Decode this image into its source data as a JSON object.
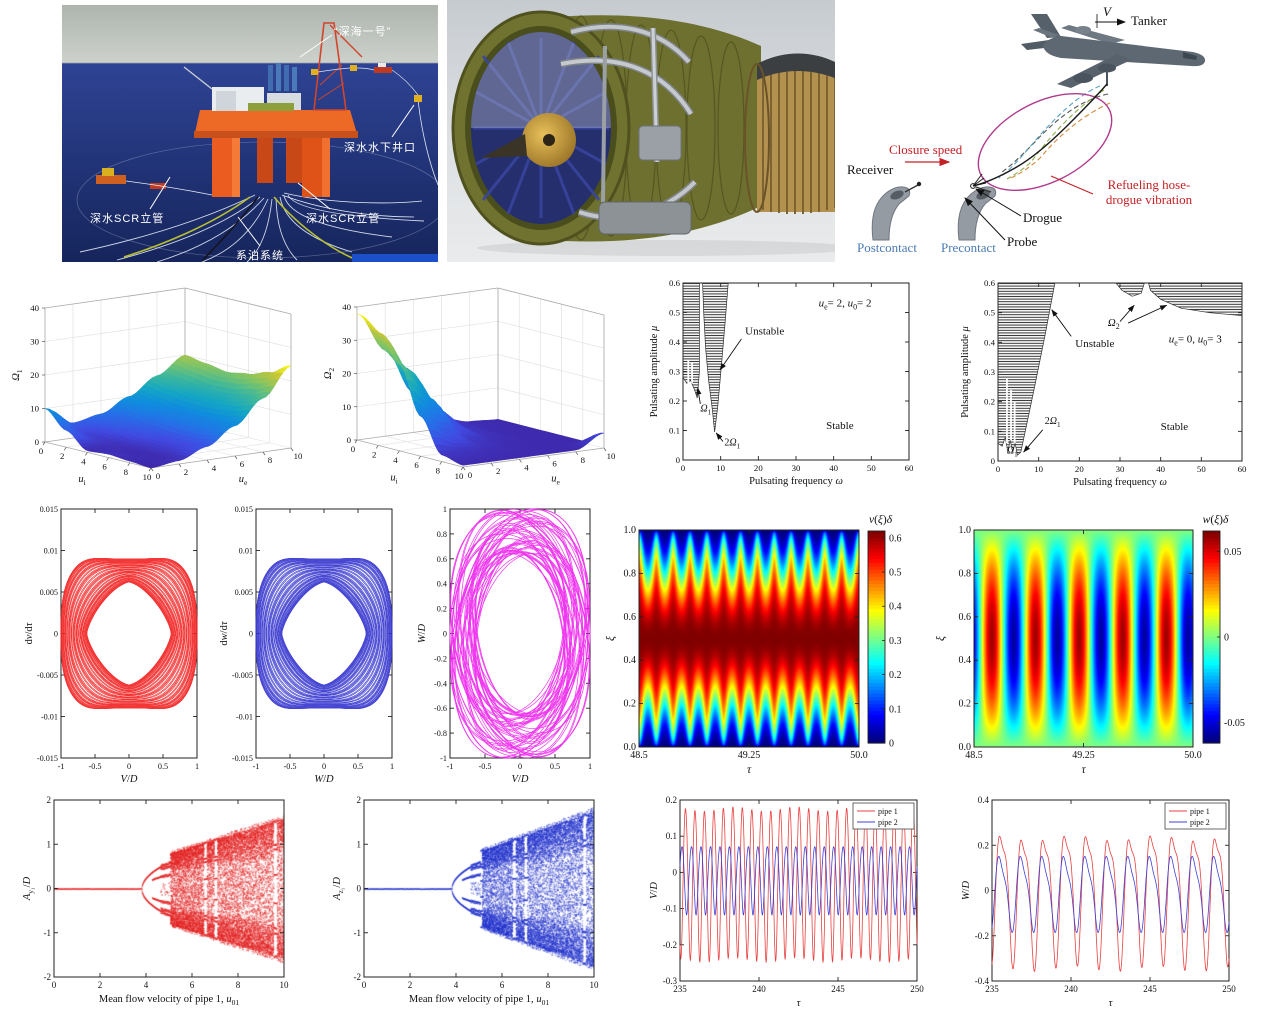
{
  "images": {
    "platform": {
      "labels": {
        "title": "“深海一号”",
        "wellhead": "深水水下井口",
        "riser_left": "深水SCR立管",
        "riser_right": "深水SCR立管",
        "mooring": "系泊系统"
      }
    },
    "engine": {},
    "refueling": {
      "labels": {
        "v": "V",
        "tanker": "Tanker",
        "closure": "Closure speed",
        "receiver": "Receiver",
        "postcontact": "Postcontact",
        "precontact": "Precontact",
        "drogue": "Drogue",
        "probe": "Probe",
        "vibration": "Refueling hose-drogue vibration"
      }
    }
  },
  "chart_data": [
    {
      "type": "surface3d",
      "xlabel": "*u*_{i}",
      "ylabel": "*u*_{e}",
      "zlabel": "*Ω*_{1}",
      "xlim": [
        0,
        10
      ],
      "ylim": [
        0,
        10
      ],
      "zlim": [
        0,
        40
      ],
      "xticks": [
        "0",
        "2",
        "4",
        "6",
        "8",
        "10"
      ],
      "yticks": [
        "0",
        "2",
        "4",
        "6",
        "8",
        "10"
      ],
      "zticks": [
        "0",
        "10",
        "20",
        "30",
        "40"
      ],
      "zmax_data": 24.5,
      "z": [
        [
          10,
          4.5,
          6,
          10,
          15,
          20
        ],
        [
          5,
          2,
          5,
          9,
          14,
          19
        ],
        [
          0.5,
          1,
          4,
          8,
          13,
          18
        ],
        [
          1,
          0.5,
          3,
          8,
          13,
          19
        ],
        [
          0.5,
          0.5,
          3,
          8,
          14,
          21
        ],
        [
          0,
          1,
          4,
          9,
          16,
          24.5
        ]
      ]
    },
    {
      "type": "surface3d",
      "xlabel": "*u*_{i}",
      "ylabel": "*u*_{e}",
      "zlabel": "*Ω*_{2}",
      "xlim": [
        0,
        10
      ],
      "ylim": [
        0,
        10
      ],
      "zlim": [
        0,
        40
      ],
      "xticks": [
        "0",
        "2",
        "4",
        "6",
        "8",
        "10"
      ],
      "yticks": [
        "0",
        "2",
        "4",
        "6",
        "8",
        "10"
      ],
      "zticks": [
        "0",
        "10",
        "20",
        "30",
        "40"
      ],
      "zmax_data": 38,
      "z": [
        [
          38,
          26,
          12,
          3,
          1,
          0.5
        ],
        [
          34,
          22,
          9,
          2,
          0.8,
          0.5
        ],
        [
          26,
          15,
          5,
          1.5,
          0.6,
          0.5
        ],
        [
          12,
          6,
          2,
          1,
          0.5,
          0.5
        ],
        [
          2,
          1.5,
          1,
          0.6,
          0.5,
          0.5
        ],
        [
          0.5,
          0.5,
          0.5,
          0.5,
          0.5,
          4.5
        ]
      ]
    },
    {
      "type": "stability",
      "xlabel": "Pulsating frequency *ω*",
      "ylabel": "Pulsating amplitude *μ*",
      "xlim": [
        0,
        60
      ],
      "ylim": [
        0,
        0.6
      ],
      "xticks": [
        "0",
        "10",
        "20",
        "30",
        "40",
        "50",
        "60"
      ],
      "yticks": [
        "0",
        "0.1",
        "0.2",
        "0.3",
        "0.4",
        "0.5",
        "0.6"
      ],
      "regions": [
        [
          [
            0,
            0.6
          ],
          [
            4.35,
            0.6
          ],
          [
            4.35,
            0.3
          ],
          [
            3.8,
            0.21
          ],
          [
            3.0,
            0.24
          ],
          [
            2.0,
            0.27
          ],
          [
            1.0,
            0.26
          ],
          [
            0,
            0.28
          ]
        ],
        [
          [
            5.2,
            0.6
          ],
          [
            12,
            0.6
          ],
          [
            11.2,
            0.47
          ],
          [
            10.2,
            0.32
          ],
          [
            9.2,
            0.18
          ],
          [
            8.4,
            0.095
          ],
          [
            7.8,
            0.17
          ],
          [
            6.8,
            0.27
          ],
          [
            6.0,
            0.38
          ],
          [
            5.5,
            0.5
          ]
        ]
      ],
      "slits": [
        [
          1.4,
          0.25,
          1.4,
          0.34
        ],
        [
          2.4,
          0.26,
          2.4,
          0.33
        ]
      ],
      "annotations": [
        {
          "t": "*u*_{e}= 2, *u*_{0}= 2",
          "x": 36,
          "y": 0.52,
          "fs": 11
        },
        {
          "t": "Unstable",
          "x": 16.5,
          "y": 0.425,
          "fs": 11,
          "arrows": [
            [
              15.5,
              0.41,
              9.8,
              0.305
            ]
          ]
        },
        {
          "t": "Stable",
          "x": 38,
          "y": 0.105,
          "fs": 11
        },
        {
          "t": "*Ω*_{1}",
          "x": 4.6,
          "y": 0.165,
          "fs": 10,
          "arrows": [
            [
              4.6,
              0.19,
              3.9,
              0.245
            ]
          ]
        },
        {
          "t": "2*Ω*_{1}",
          "x": 11,
          "y": 0.05,
          "fs": 10,
          "arrows": [
            [
              10.6,
              0.063,
              8.8,
              0.092
            ]
          ]
        }
      ]
    },
    {
      "type": "stability",
      "xlabel": "Pulsating frequency *ω*",
      "ylabel": "Pulsating amplitude *μ*",
      "xlim": [
        0,
        60
      ],
      "ylim": [
        0,
        0.6
      ],
      "xticks": [
        "0",
        "10",
        "20",
        "30",
        "40",
        "50",
        "60"
      ],
      "yticks": [
        "0",
        "0.1",
        "0.2",
        "0.3",
        "0.4",
        "0.5",
        "0.6"
      ],
      "regions": [
        [
          [
            0,
            0.6
          ],
          [
            14,
            0.6
          ],
          [
            11.5,
            0.42
          ],
          [
            9,
            0.25
          ],
          [
            7,
            0.12
          ],
          [
            5.6,
            0.03
          ],
          [
            4.8,
            0.02
          ],
          [
            4.2,
            0.06
          ],
          [
            3.6,
            0.03
          ],
          [
            3.0,
            0.07
          ],
          [
            2.4,
            0.03
          ],
          [
            1.8,
            0.08
          ],
          [
            1.0,
            0.05
          ],
          [
            0,
            0.06
          ]
        ],
        [
          [
            29,
            0.6
          ],
          [
            36,
            0.6
          ],
          [
            35.2,
            0.565
          ],
          [
            33,
            0.555
          ],
          [
            30.5,
            0.575
          ]
        ],
        [
          [
            37,
            0.6
          ],
          [
            60,
            0.6
          ],
          [
            60,
            0.49
          ],
          [
            52,
            0.5
          ],
          [
            45,
            0.515
          ],
          [
            40,
            0.545
          ],
          [
            37.5,
            0.575
          ]
        ]
      ],
      "slits": [
        [
          2.2,
          0.06,
          2.2,
          0.28
        ],
        [
          3.2,
          0.07,
          3.2,
          0.24
        ],
        [
          4.1,
          0.06,
          4.1,
          0.2
        ]
      ],
      "annotations": [
        {
          "t": "*u*_{e}= 0, *u*_{0}= 3",
          "x": 42,
          "y": 0.4,
          "fs": 11
        },
        {
          "t": "Unstable",
          "x": 19,
          "y": 0.385,
          "fs": 11,
          "arrows": [
            [
              18,
              0.42,
              13.2,
              0.51
            ]
          ]
        },
        {
          "t": "*Ω*_{2}",
          "x": 27,
          "y": 0.455,
          "fs": 11,
          "arrows": [
            [
              30,
              0.47,
              33.5,
              0.525
            ],
            [
              32,
              0.465,
              41.5,
              0.525
            ]
          ]
        },
        {
          "t": "Stable",
          "x": 40,
          "y": 0.105,
          "fs": 11
        },
        {
          "t": "2*Ω*_{1}",
          "x": 11.5,
          "y": 0.125,
          "fs": 10,
          "arrows": [
            [
              11,
              0.105,
              6.3,
              0.03
            ]
          ]
        },
        {
          "t": "*Ω*_{1}",
          "x": 2.2,
          "y": 0.025,
          "fs": 10
        }
      ]
    },
    {
      "type": "phase",
      "color": "#f22222",
      "xlabel": "*V*/*D*",
      "ylabel": "d*v*/d*τ*",
      "xlim": [
        -1,
        1
      ],
      "ylim": [
        -0.015,
        0.015
      ],
      "xticks": [
        "-1",
        "-0.5",
        "0",
        "0.5",
        "1"
      ],
      "yticks": [
        "-0.015",
        "-0.01",
        "-0.005",
        "0",
        "0.005",
        "0.01",
        "0.015"
      ],
      "gen": {
        "kind": "square",
        "loops": 56,
        "smin": 0.62,
        "smax": 1.0,
        "ay": 0.0102
      }
    },
    {
      "type": "phase",
      "color": "#3535cf",
      "xlabel": "*W*/*D*",
      "ylabel": "d*w*/d*τ*",
      "xlim": [
        -1,
        1
      ],
      "ylim": [
        -0.015,
        0.015
      ],
      "xticks": [
        "-1",
        "-0.5",
        "0",
        "0.5",
        "1"
      ],
      "yticks": [
        "-0.015",
        "-0.01",
        "-0.005",
        "0",
        "0.005",
        "0.01",
        "0.015"
      ],
      "gen": {
        "kind": "square",
        "loops": 56,
        "smin": 0.62,
        "smax": 1.0,
        "ay": 0.0102
      }
    },
    {
      "type": "phase",
      "color": "#ee22ee",
      "xlabel": "*V*/*D*",
      "ylabel": "*W*/*D*",
      "xlim": [
        -1,
        1
      ],
      "ylim": [
        -1,
        1
      ],
      "xticks": [
        "-1",
        "-0.5",
        "0",
        "0.5",
        "1"
      ],
      "yticks": [
        "-1",
        "-0.8",
        "-0.6",
        "-0.4",
        "-0.2",
        "0",
        "0.2",
        "0.4",
        "0.6",
        "0.8",
        "1"
      ],
      "gen": {
        "kind": "ellipse",
        "loops": 52,
        "amin": 0.63,
        "amax": 1.0,
        "bmin": 0.64,
        "bmax": 1.0
      }
    },
    {
      "type": "heatmap",
      "field": "v",
      "xlabel": "*τ*",
      "ylabel": "*ξ*",
      "xlim": [
        48.5,
        50
      ],
      "ylim": [
        0,
        1
      ],
      "xticks": [
        "48.5",
        "49.25",
        "50.0"
      ],
      "yticks": [
        "0.0",
        "0.2",
        "0.4",
        "0.6",
        "0.8",
        "1.0"
      ],
      "clim": [
        0,
        0.62
      ],
      "ctick_vals": [
        0,
        0.1,
        0.2,
        0.3,
        0.4,
        0.5,
        0.6
      ],
      "cticks": [
        "0",
        "0.1",
        "0.2",
        "0.3",
        "0.4",
        "0.5",
        "0.6"
      ],
      "ctitle": "*v*(*ξ*)*δ*",
      "params": {
        "vmax": 0.62,
        "cycles": 13,
        "emin": 0.45,
        "emax": 1.75
      }
    },
    {
      "type": "heatmap",
      "field": "w",
      "xlabel": "*τ*",
      "ylabel": "*ξ*",
      "xlim": [
        48.5,
        50
      ],
      "ylim": [
        0,
        1
      ],
      "xticks": [
        "48.5",
        "49.25",
        "50.0"
      ],
      "yticks": [
        "0.0",
        "0.2",
        "0.4",
        "0.6",
        "0.8",
        "1.0"
      ],
      "clim": [
        -0.062,
        0.062
      ],
      "ctick_vals": [
        0.05,
        0,
        -0.05
      ],
      "cticks": [
        "0.05",
        "0",
        "-0.05"
      ],
      "ctitle": "*w*(*ξ*)*δ*",
      "params": {
        "amp": 0.058,
        "period": 0.3,
        "t0": 48.62
      }
    },
    {
      "type": "bifurcation",
      "color": "#e32222",
      "xlabel": "Mean flow velocity of pipe 1, *u*_{01}",
      "ylabel": "*A*_{y₁}/*D*",
      "xlim": [
        0,
        10
      ],
      "ylim": [
        -2,
        2
      ],
      "xticks": [
        "0",
        "2",
        "4",
        "6",
        "8",
        "10"
      ],
      "yticks": [
        "-2",
        "-1",
        "0",
        "1",
        "2"
      ],
      "gen": {
        "onset": 3.8,
        "bubbleEnd": 4.62,
        "chaos": 5.05,
        "env0": 0.85,
        "env1": 1.68,
        "windows": [
          [
            6.5,
            6.63
          ],
          [
            6.95,
            7.09
          ],
          [
            9.53,
            9.68
          ]
        ],
        "seed": 7
      }
    },
    {
      "type": "bifurcation",
      "color": "#2233cc",
      "xlabel": "Mean flow velocity of pipe 1, *u*_{01}",
      "ylabel": "*A*_{z₁}/*D*",
      "xlim": [
        0,
        10
      ],
      "ylim": [
        -2,
        2
      ],
      "xticks": [
        "0",
        "2",
        "4",
        "6",
        "8",
        "10"
      ],
      "yticks": [
        "-2",
        "-1",
        "0",
        "1",
        "2"
      ],
      "gen": {
        "onset": 3.8,
        "bubbleEnd": 4.62,
        "chaos": 5.05,
        "env0": 0.9,
        "env1": 1.85,
        "windows": [
          [
            5.02,
            5.12
          ],
          [
            6.45,
            6.58
          ],
          [
            6.95,
            7.08
          ],
          [
            9.5,
            9.64
          ]
        ],
        "seed": 23
      }
    },
    {
      "type": "timeseries",
      "xlabel": "*τ*",
      "ylabel": "*V*/*D*",
      "xlim": [
        235,
        250
      ],
      "ylim": [
        -0.3,
        0.2
      ],
      "xticks": [
        "235",
        "240",
        "245",
        "250"
      ],
      "yticks": [
        "-0.3",
        "-0.2",
        "-0.1",
        "0",
        "0.1",
        "0.2"
      ],
      "legend": [
        "pipe 1",
        "pipe 2"
      ],
      "series": [
        {
          "label": "pipe 1",
          "color": "#e84040",
          "off": -0.022,
          "terms": [
            [
              0.208,
              0.6,
              0
            ],
            [
              0.012,
              0.3,
              1.3
            ],
            [
              0.006,
              3.9,
              0.7
            ]
          ]
        },
        {
          "label": "pipe 2",
          "color": "#4040d8",
          "off": -0.016,
          "terms": [
            [
              0.094,
              0.6,
              2.4
            ],
            [
              0.008,
              0.3,
              0.5
            ]
          ]
        }
      ]
    },
    {
      "type": "timeseries",
      "xlabel": "*τ*",
      "ylabel": "*W*/*D*",
      "xlim": [
        235,
        250
      ],
      "ylim": [
        -0.4,
        0.4
      ],
      "xticks": [
        "235",
        "240",
        "245",
        "250"
      ],
      "yticks": [
        "-0.4",
        "-0.2",
        "0",
        "0.2",
        "0.4"
      ],
      "legend": [
        "pipe 1",
        "pipe 2"
      ],
      "series": [
        {
          "label": "pipe 1",
          "color": "#e84040",
          "off": 0.003,
          "terms": [
            [
              0.27,
              1.36,
              0
            ],
            [
              0.082,
              0.68,
              1.15
            ],
            [
              0.012,
              5.2,
              0.4
            ]
          ]
        },
        {
          "label": "pipe 2",
          "color": "#4040d8",
          "off": 0.0,
          "terms": [
            [
              0.153,
              1.36,
              0.35
            ],
            [
              0.042,
              0.68,
              1.3
            ]
          ]
        }
      ]
    }
  ]
}
